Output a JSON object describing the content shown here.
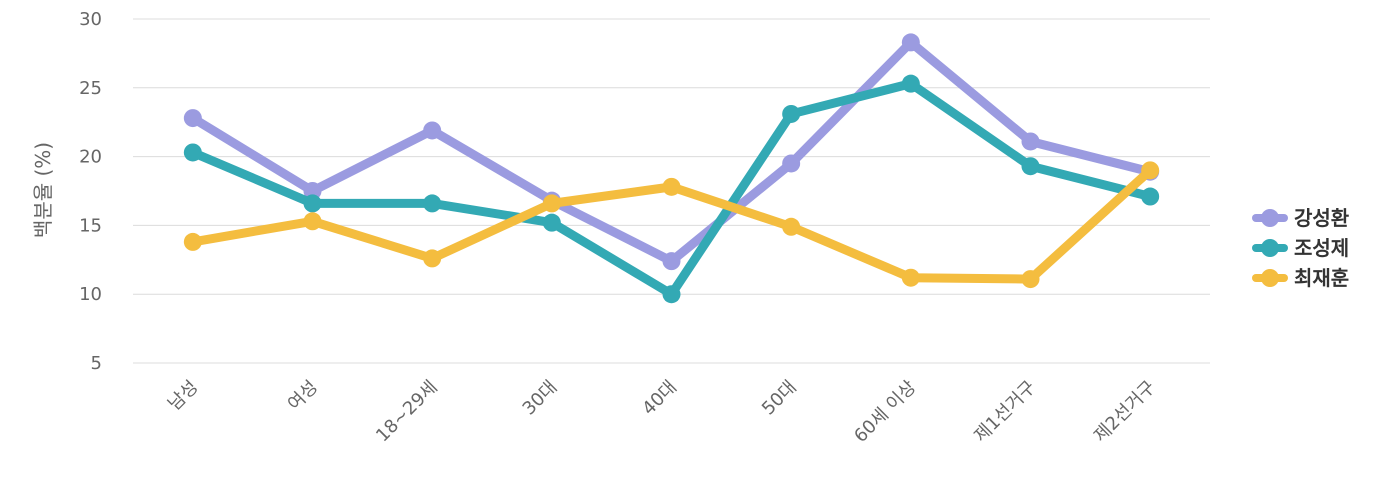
{
  "chart_data": {
    "type": "line",
    "categories": [
      "남성",
      "여성",
      "18~29세",
      "30대",
      "40대",
      "50대",
      "60세 이상",
      "제1선거구",
      "제2선거구"
    ],
    "ylabel": "백분율 (%)",
    "xlabel": "",
    "ylim": [
      5,
      30
    ],
    "yticks": [
      5,
      10,
      15,
      20,
      25,
      30
    ],
    "grid": true,
    "legend_position": "right",
    "series": [
      {
        "name": "강성환",
        "color": "#9b9be0",
        "values": [
          22.8,
          17.5,
          21.9,
          16.8,
          12.4,
          19.5,
          28.3,
          21.1,
          18.9
        ]
      },
      {
        "name": "조성제",
        "color": "#33a9b4",
        "values": [
          20.3,
          16.6,
          16.6,
          15.2,
          10.0,
          23.1,
          25.3,
          19.3,
          17.1
        ]
      },
      {
        "name": "최재훈",
        "color": "#f4bd3f",
        "values": [
          13.8,
          15.3,
          12.6,
          16.6,
          17.8,
          14.9,
          11.2,
          11.1,
          19.0
        ]
      }
    ]
  }
}
